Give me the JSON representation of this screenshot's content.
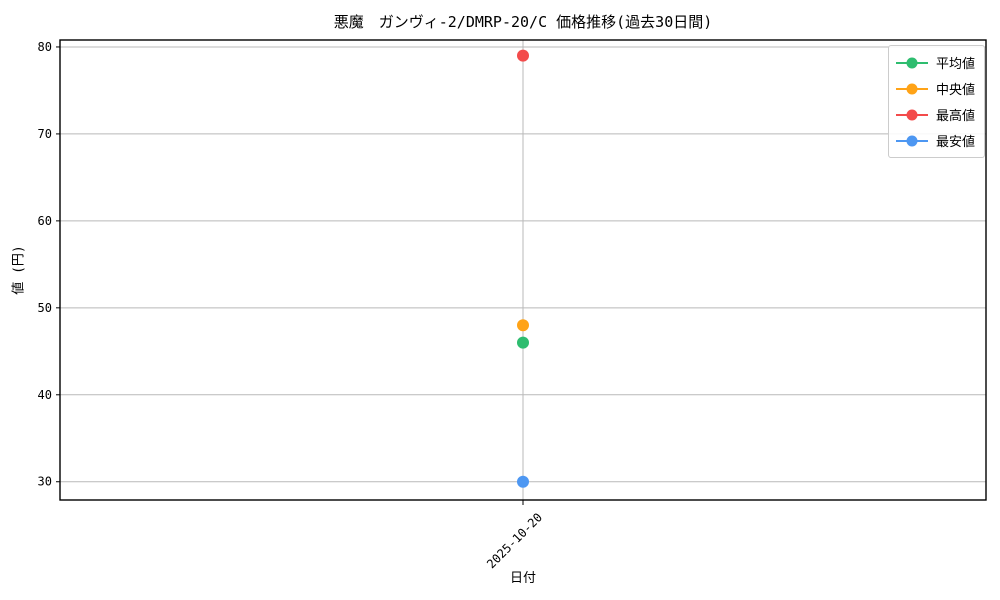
{
  "figure": {
    "title": "悪魔　ガンヴィ-2/DMRP-20/C 価格推移(過去30日間)",
    "xlabel": "日付",
    "ylabel": "値 (円)"
  },
  "chart_data": {
    "type": "scatter",
    "title": "悪魔　ガンヴィ-2/DMRP-20/C 価格推移(過去30日間)",
    "xlabel": "日付",
    "ylabel": "値 (円)",
    "x": [
      "2025-10-20"
    ],
    "series": [
      {
        "name": "平均値",
        "color": "#2ebd6f",
        "values": [
          46
        ]
      },
      {
        "name": "中央値",
        "color": "#ffa317",
        "values": [
          48
        ]
      },
      {
        "name": "最高値",
        "color": "#f34b4b",
        "values": [
          79
        ]
      },
      {
        "name": "最安値",
        "color": "#4d97f2",
        "values": [
          30
        ]
      }
    ],
    "ylim": [
      27.9,
      80.8
    ],
    "yticks": [
      30,
      40,
      50,
      60,
      70,
      80
    ],
    "grid": true,
    "grid_color": "#b9b9b9",
    "spine_color": "#000000",
    "legend_position": "upper right"
  }
}
